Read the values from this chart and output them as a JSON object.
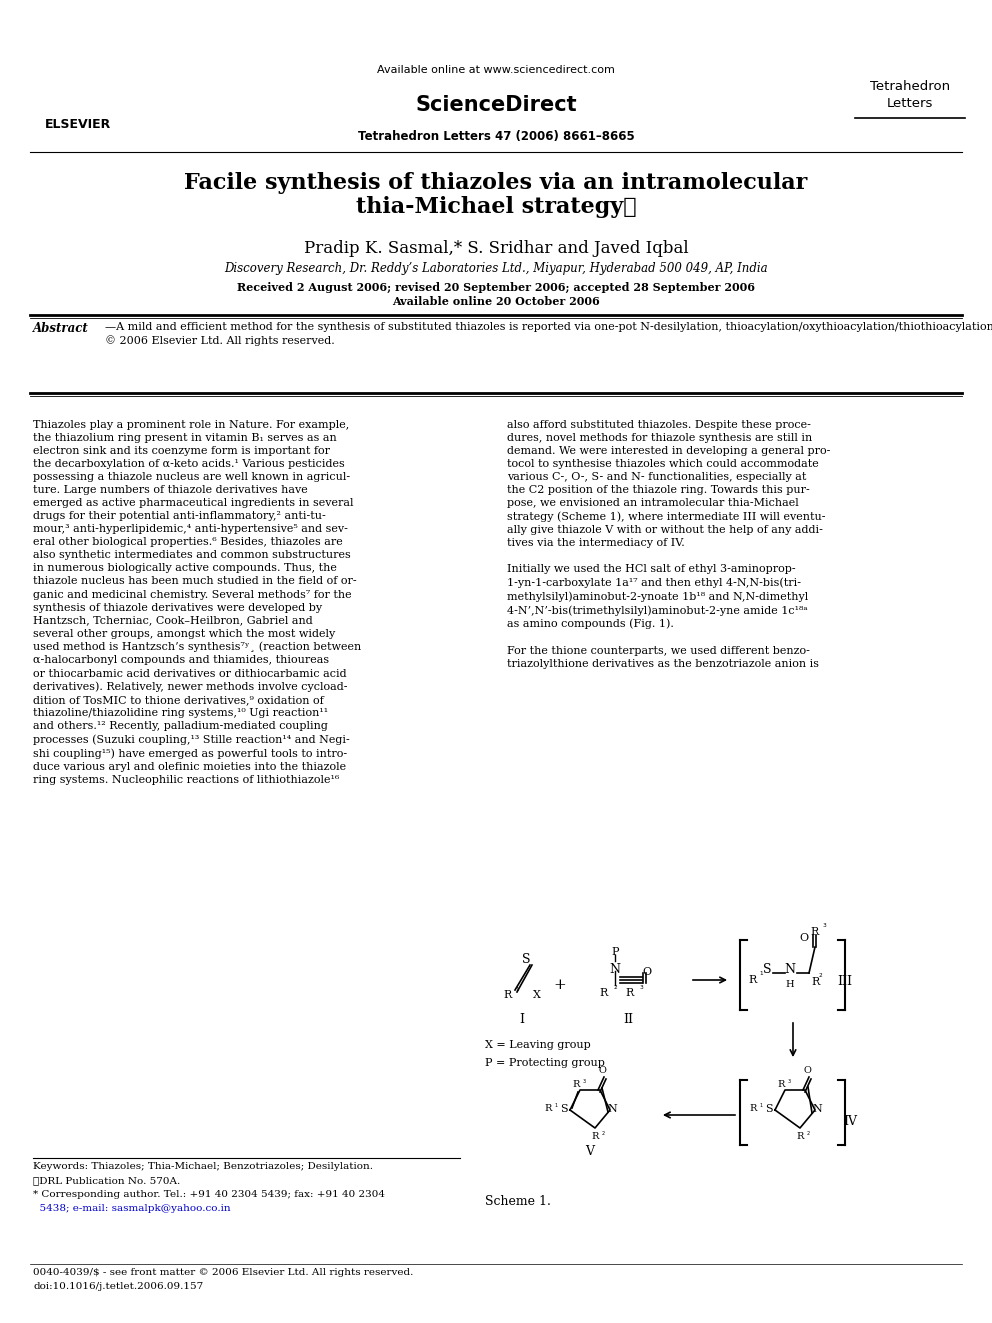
{
  "page_width": 9.92,
  "page_height": 13.23,
  "bg_color": "#ffffff",
  "header_available": "Available online at www.sciencedirect.com",
  "header_sciencedirect": "ScienceDirect",
  "header_journal_right1": "Tetrahedron",
  "header_journal_right2": "Letters",
  "header_journal_info": "Tetrahedron Letters 47 (2006) 8661–8665",
  "title_line1": "Facile synthesis of thiazoles via an intramolecular",
  "title_line2": "thia-Michael strategy⋆",
  "authors": "Pradip K. Sasmal,* S. Sridhar and Javed Iqbal",
  "affiliation": "Discovery Research, Dr. Reddy’s Laboratories Ltd., Miyapur, Hyderabad 500 049, AP, India",
  "received_line1": "Received 2 August 2006; revised 20 September 2006; accepted 28 September 2006",
  "received_line2": "Available online 20 October 2006",
  "abstract_label": "Abstract",
  "abstract_body": "—A mild and efficient method for the synthesis of substituted thiazoles is reported via one-pot N-desilylation, thioacylation/oxythioacylation/thiothioacylation followed by thia-Michael cycloisomerisation. This method has a general applicability to introduce various oxo and thio functionalities including aliphatic and aromatic moieties, especially at the C2-position of thiazoles.\n© 2006 Elsevier Ltd. All rights reserved.",
  "col_left": "Thiazoles play a prominent role in Nature. For example,\nthe thiazolium ring present in vitamin B₁ serves as an\nelectron sink and its coenzyme form is important for\nthe decarboxylation of α-keto acids.¹ Various pesticides\npossessing a thiazole nucleus are well known in agricul-\nture. Large numbers of thiazole derivatives have\nemerged as active pharmaceutical ingredients in several\ndrugs for their potential anti-inflammatory,² anti-tu-\nmour,³ anti-hyperlipidemic,⁴ anti-hypertensive⁵ and sev-\neral other biological properties.⁶ Besides, thiazoles are\nalso synthetic intermediates and common substructures\nin numerous biologically active compounds. Thus, the\nthiazole nucleus has been much studied in the field of or-\nganic and medicinal chemistry. Several methods⁷ for the\nsynthesis of thiazole derivatives were developed by\nHantzsch, Tcherniac, Cook–Heilbron, Gabriel and\nseveral other groups, amongst which the most widely\nused method is Hantzsch’s synthesis⁷ʸ¸ (reaction between\nα-halocarbonyl compounds and thiamides, thioureas\nor thiocarbamic acid derivatives or dithiocarbamic acid\nderivatives). Relatively, newer methods involve cycload-\ndition of TosMIC to thione derivatives,⁹ oxidation of\nthiazoline/thiazolidine ring systems,¹⁰ Ugi reaction¹¹\nand others.¹² Recently, palladium-mediated coupling\nprocesses (Suzuki coupling,¹³ Stille reaction¹⁴ and Negi-\nshi coupling¹⁵) have emerged as powerful tools to intro-\nduce various aryl and olefinic moieties into the thiazole\nring systems. Nucleophilic reactions of lithiothiazole¹⁶",
  "col_right_top": "also afford substituted thiazoles. Despite these proce-\ndures, novel methods for thiazole synthesis are still in\ndemand. We were interested in developing a general pro-\ntocol to synthesise thiazoles which could accommodate\nvarious C-, O-, S- and N- functionalities, especially at\nthe C2 position of the thiazole ring. Towards this pur-\npose, we envisioned an intramolecular thia-Michael\nstrategy (Scheme 1), where intermediate III will eventu-\nally give thiazole V with or without the help of any addi-\ntives via the intermediacy of IV.\n\nInitially we used the HCl salt of ethyl 3-aminoprop-\n1-yn-1-carboxylate 1a¹⁷ and then ethyl 4-N,N-bis(tri-\nmethylsilyl)aminobut-2-ynoate 1b¹⁸ and N,N-dimethyl\n4-N’,N’-bis(trimethylsilyl)aminobut-2-yne amide 1c¹⁸ᵃ\nas amino compounds (Fig. 1).\n\nFor the thione counterparts, we used different benzo-\ntriazolylthione derivatives as the benzotriazole anion is",
  "footnote1": "Keywords: Thiazoles; Thia-Michael; Benzotriazoles; Desilylation.",
  "footnote2": "⋆DRL Publication No. 570A.",
  "footnote3": "* Corresponding author. Tel.: +91 40 2304 5439; fax: +91 40 2304",
  "footnote4": "  5438; e-mail: sasmalpk@yahoo.co.in",
  "footer1": "0040-4039/$ - see front matter © 2006 Elsevier Ltd. All rights reserved.",
  "footer2": "doi:10.1016/j.tetlet.2006.09.157",
  "scheme_label": "Scheme 1.",
  "link_color": "#0000cc"
}
